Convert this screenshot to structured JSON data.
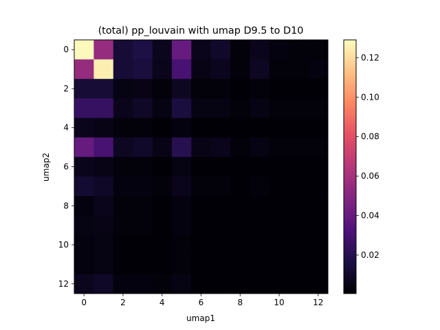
{
  "chart_data": {
    "type": "heatmap",
    "title": "(total) pp_louvain with umap D9.5 to D10",
    "xlabel": "umap1",
    "ylabel": "umap2",
    "colormap": "magma",
    "x_ticks": [
      "0",
      "2",
      "4",
      "6",
      "8",
      "10",
      "12"
    ],
    "y_ticks": [
      "0",
      "2",
      "4",
      "6",
      "8",
      "10",
      "12"
    ],
    "colorbar": {
      "ticks": [
        "0.02",
        "0.04",
        "0.06",
        "0.08",
        "0.10",
        "0.12"
      ],
      "range": [
        0.0005,
        0.129
      ]
    },
    "values": [
      [
        0.128,
        0.055,
        0.013,
        0.017,
        0.007,
        0.04,
        0.006,
        0.01,
        0.002,
        0.006,
        0.003,
        0.002,
        0.002
      ],
      [
        0.055,
        0.125,
        0.013,
        0.015,
        0.006,
        0.03,
        0.005,
        0.007,
        0.002,
        0.008,
        0.002,
        0.002,
        0.003
      ],
      [
        0.013,
        0.013,
        0.004,
        0.005,
        0.002,
        0.008,
        0.002,
        0.002,
        0.001,
        0.002,
        0.001,
        0.001,
        0.001
      ],
      [
        0.025,
        0.025,
        0.006,
        0.009,
        0.004,
        0.015,
        0.004,
        0.004,
        0.002,
        0.004,
        0.002,
        0.002,
        0.002
      ],
      [
        0.006,
        0.005,
        0.002,
        0.002,
        0.001,
        0.003,
        0.001,
        0.001,
        0.001,
        0.001,
        0.001,
        0.001,
        0.001
      ],
      [
        0.04,
        0.03,
        0.008,
        0.01,
        0.005,
        0.02,
        0.005,
        0.006,
        0.002,
        0.004,
        0.002,
        0.002,
        0.002
      ],
      [
        0.006,
        0.005,
        0.002,
        0.002,
        0.001,
        0.004,
        0.001,
        0.001,
        0.001,
        0.001,
        0.001,
        0.001,
        0.001
      ],
      [
        0.012,
        0.009,
        0.003,
        0.003,
        0.002,
        0.006,
        0.002,
        0.002,
        0.001,
        0.002,
        0.001,
        0.001,
        0.001
      ],
      [
        0.003,
        0.006,
        0.002,
        0.002,
        0.001,
        0.003,
        0.001,
        0.001,
        0.001,
        0.001,
        0.001,
        0.001,
        0.001
      ],
      [
        0.004,
        0.005,
        0.002,
        0.002,
        0.001,
        0.003,
        0.001,
        0.001,
        0.001,
        0.001,
        0.001,
        0.001,
        0.001
      ],
      [
        0.003,
        0.004,
        0.001,
        0.001,
        0.001,
        0.002,
        0.001,
        0.001,
        0.001,
        0.001,
        0.001,
        0.001,
        0.001
      ],
      [
        0.003,
        0.004,
        0.001,
        0.001,
        0.001,
        0.002,
        0.001,
        0.001,
        0.001,
        0.001,
        0.001,
        0.001,
        0.001
      ],
      [
        0.007,
        0.009,
        0.003,
        0.003,
        0.002,
        0.004,
        0.001,
        0.001,
        0.001,
        0.001,
        0.001,
        0.001,
        0.001
      ]
    ]
  }
}
